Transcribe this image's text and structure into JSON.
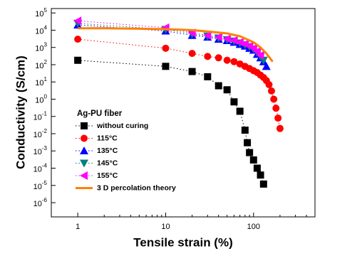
{
  "chart_data": {
    "type": "scatter",
    "x_label": "Tensile strain (%)",
    "y_label": "Conductivity (S/cm)",
    "legend_title": "Ag-PU fiber",
    "log_x": true,
    "log_y": true,
    "xlim": [
      0.5,
      500
    ],
    "ylim": [
      1.5e-07,
      180000.0
    ],
    "xticks": [
      1,
      10,
      100
    ],
    "yticks": [
      {
        "value": 100000,
        "label": "10^5"
      },
      {
        "value": 10000,
        "label": "10^4"
      },
      {
        "value": 1000,
        "label": "10^3"
      },
      {
        "value": 100,
        "label": "10^2"
      },
      {
        "value": 10,
        "label": "10^1"
      },
      {
        "value": 1,
        "label": "10^0"
      },
      {
        "value": 0.1,
        "label": "10^-1"
      },
      {
        "value": 0.01,
        "label": "10^-2"
      },
      {
        "value": 0.001,
        "label": "10^-3"
      },
      {
        "value": 0.0001,
        "label": "10^-4"
      },
      {
        "value": 1e-05,
        "label": "10^-5"
      },
      {
        "value": 1e-06,
        "label": "10^-6"
      }
    ],
    "legend": "upper left",
    "series": [
      {
        "name": "without curing",
        "color": "#000000",
        "marker": "square",
        "x": [
          1,
          10,
          20,
          30,
          40,
          50,
          60,
          70,
          80,
          85,
          90,
          100,
          110,
          120,
          130
        ],
        "values": [
          180,
          80,
          40,
          20,
          6,
          3.5,
          0.7,
          0.2,
          0.016,
          0.003,
          0.0008,
          0.0003,
          0.0001,
          4e-05,
          1.2e-05
        ]
      },
      {
        "name": "115°C",
        "color": "#ff0000",
        "marker": "circle",
        "x": [
          1,
          10,
          20,
          30,
          40,
          50,
          60,
          70,
          80,
          90,
          100,
          110,
          120,
          130,
          140,
          150,
          160,
          170,
          180,
          190,
          200
        ],
        "values": [
          3000,
          900,
          450,
          300,
          250,
          180,
          150,
          110,
          80,
          60,
          45,
          35,
          25,
          18,
          12,
          7,
          3,
          1,
          0.3,
          0.08,
          0.02
        ]
      },
      {
        "name": "135°C",
        "color": "#0000ff",
        "marker": "triangle-up",
        "x": [
          1,
          10,
          20,
          30,
          40,
          50,
          60,
          70,
          80,
          90,
          100,
          110,
          120,
          130,
          140
        ],
        "values": [
          20000,
          9000,
          5000,
          4000,
          3000,
          2500,
          2000,
          1500,
          1200,
          900,
          700,
          400,
          250,
          150,
          80
        ]
      },
      {
        "name": "145°C",
        "color": "#008080",
        "marker": "triangle-down",
        "x": [
          1,
          10,
          20,
          30,
          40,
          50,
          60,
          70,
          80,
          90,
          100,
          110,
          120,
          130
        ],
        "values": [
          25000,
          11000,
          6000,
          4500,
          3500,
          2800,
          2300,
          1800,
          1400,
          1100,
          800,
          500,
          300,
          180
        ]
      },
      {
        "name": "155°C",
        "color": "#ff00ff",
        "marker": "triangle-left",
        "x": [
          1,
          10,
          20,
          30,
          40,
          50,
          60,
          70,
          80,
          90,
          100,
          110,
          120
        ],
        "values": [
          35000,
          14000,
          7000,
          5000,
          4000,
          3200,
          2600,
          2000,
          1600,
          1200,
          900,
          600,
          350
        ]
      },
      {
        "name": "3 D percolation theory",
        "color": "#ff8000",
        "marker": "line",
        "x": [
          1,
          2,
          5,
          10,
          20,
          30,
          50,
          70,
          100,
          120,
          140,
          165
        ],
        "values": [
          13000,
          12800,
          12200,
          11500,
          10000,
          8500,
          6500,
          4500,
          2000,
          1000,
          450,
          150
        ]
      }
    ]
  }
}
